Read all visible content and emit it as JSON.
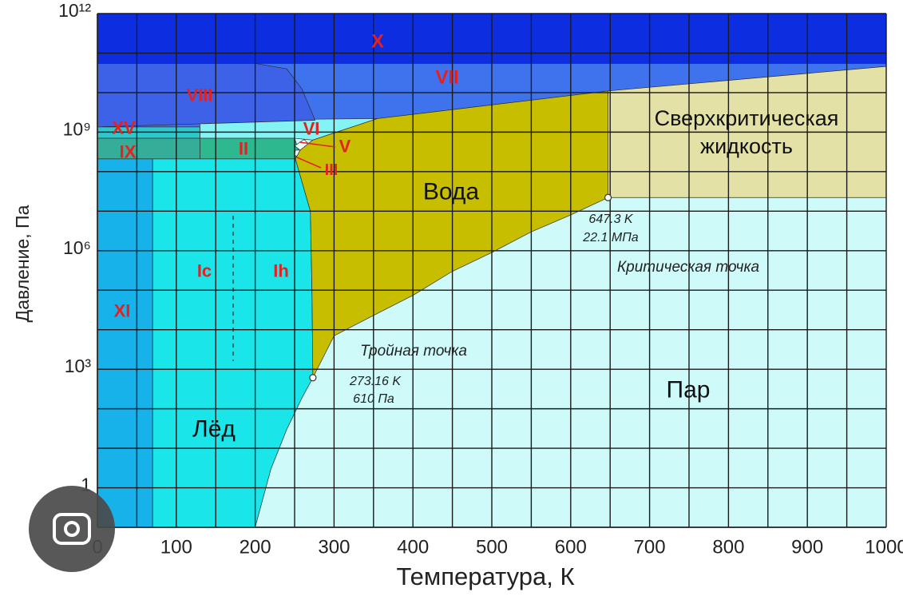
{
  "chart_data": {
    "type": "phase-diagram",
    "x_label": "Температура, К",
    "y_label": "Давление, Па",
    "xlim": [
      0,
      1000
    ],
    "ylim": [
      0.1,
      1000000000000.0
    ],
    "log_y": true,
    "xticks": [
      0,
      100,
      200,
      300,
      400,
      500,
      600,
      700,
      800,
      900,
      1000
    ],
    "yticks": [
      1,
      {
        "value": 1000,
        "label": "10³"
      },
      {
        "value": 1000000,
        "label": "10⁶"
      },
      {
        "value": 1000000000,
        "label": "10⁹"
      },
      {
        "value": 1000000000000,
        "label": "10¹²"
      }
    ],
    "grid": true,
    "xgrid": [
      0,
      50,
      100,
      150,
      200,
      250,
      300,
      350,
      400,
      450,
      500,
      550,
      600,
      650,
      700,
      750,
      800,
      850,
      900,
      950,
      1000
    ],
    "ygrid": [
      0.1,
      1,
      10,
      100,
      1000,
      10000,
      100000,
      1000000,
      10000000,
      100000000,
      1000000000,
      10000000000,
      100000000000,
      1000000000000
    ],
    "grid_color": "#1a1a1a",
    "background": "#cffafa",
    "regions": [
      {
        "name": "VII",
        "color": "#3f73ee",
        "label_color": "#e52020",
        "x": [
          0,
          1000,
          1000,
          0
        ],
        "y": [
          1350000000,
          1350000000,
          55000000000,
          55000000000
        ]
      },
      {
        "name": "VI",
        "color": "#84f3f3",
        "label_color": "#e52020",
        "x": [
          130,
          250,
          273,
          355,
          130
        ],
        "y": [
          700000000,
          700000000,
          630000000,
          2200000000,
          2000000000
        ]
      },
      {
        "name": "VIII",
        "color": "#3d62e8",
        "label_color": "#e52020",
        "x": [
          0,
          200,
          240,
          259,
          276,
          0
        ],
        "y": [
          55000000000,
          55000000000,
          40000000000,
          12600000000,
          2000000000,
          1350000000
        ]
      },
      {
        "name": "XV",
        "color": "#2cc8cc",
        "label_color": "#e52020",
        "x": [
          0,
          130,
          130,
          0
        ],
        "y": [
          700000000,
          700000000,
          1350000000,
          1350000000
        ]
      },
      {
        "name": "IX",
        "color": "#34ae98",
        "label_color": "#e52020",
        "x": [
          0,
          130,
          130,
          0
        ],
        "y": [
          210000000,
          210000000,
          700000000,
          700000000
        ]
      },
      {
        "name": "II",
        "color": "#2db890",
        "label_color": "#e52020",
        "x": [
          130,
          251,
          255,
          250,
          130
        ],
        "y": [
          210000000,
          210000000,
          350000000,
          700000000,
          700000000
        ]
      },
      {
        "name": "V",
        "color": "#f2ffff",
        "label_color": "#e52020",
        "x": [
          250,
          257,
          268,
          262
        ],
        "y": [
          450000000,
          350000000,
          500000000,
          650000000
        ]
      },
      {
        "name": "III",
        "color": "#e4f6f6",
        "label_color": "#e52020",
        "x": [
          250,
          254,
          257,
          251
        ],
        "y": [
          260000000,
          240000000,
          350000000,
          350000000
        ]
      },
      {
        "name": "XI",
        "color": "#18b2ea",
        "label_color": "#e52020",
        "x": [
          0,
          70,
          70,
          0
        ],
        "y": [
          0.1,
          0.1,
          210000000,
          210000000
        ]
      },
      {
        "name": "Лёд",
        "color": "#1ae6ea",
        "label_color": "#111111",
        "x": [
          70,
          200,
          220,
          240,
          260,
          273.16,
          272,
          270,
          251,
          70
        ],
        "y": [
          0.1,
          0.1,
          3,
          30,
          200,
          610,
          100000,
          10000000,
          210000000,
          210000000
        ]
      },
      {
        "name": "Вода",
        "color": "#c8be00",
        "label_color": "#111111",
        "x": [
          273.16,
          300,
          350,
          400,
          450,
          500,
          550,
          600,
          647.3,
          647.3,
          355,
          273,
          257,
          251,
          270,
          272
        ],
        "y": [
          610,
          7000,
          23000,
          74000,
          300000,
          900000,
          3000000,
          8000000,
          22100000,
          11000000000,
          2200000000,
          630000000,
          350000000,
          210000000,
          10000000,
          100000
        ]
      },
      {
        "name": "Сверхкритическая жидкость",
        "color": "#e4e1a6",
        "label_color": "#111111",
        "x": [
          647.3,
          1000,
          1000,
          647.3
        ],
        "y": [
          22100000,
          22100000,
          46000000000,
          11000000000
        ]
      },
      {
        "name": "X",
        "color": "#0c2ee0",
        "label_color": "#e52020",
        "x": [
          0,
          1000,
          1000,
          0
        ],
        "y": [
          55000000000,
          55000000000,
          1000000000000,
          1000000000000
        ]
      }
    ],
    "labels": [
      {
        "text": "Ic",
        "color": "#e52020"
      },
      {
        "text": "Ih",
        "color": "#e52020"
      },
      {
        "text": "Пар",
        "color": "#111111"
      }
    ],
    "points": [
      {
        "name": "Тройная точка",
        "x": 273.16,
        "y": 610,
        "labels": [
          "273.16 K",
          "610 Па"
        ]
      },
      {
        "name": "Критическая точка",
        "x": 647.3,
        "y": 22100000,
        "labels": [
          "647.3 K",
          "22.1 МПа"
        ]
      }
    ]
  }
}
